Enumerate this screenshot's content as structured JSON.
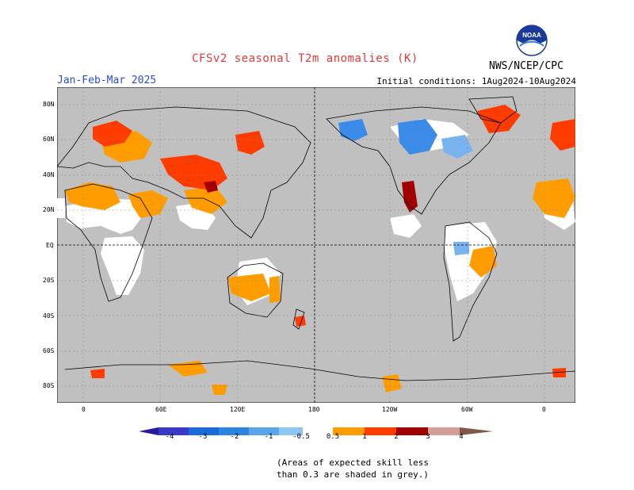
{
  "header": {
    "title": "CFSv2 seasonal T2m anomalies (K)",
    "season": "Jan-Feb-Mar 2025",
    "initial_conditions": "Initial conditions: 1Aug2024-10Aug2024",
    "agency": "NWS/NCEP/CPC",
    "logo_text": "NOAA"
  },
  "map": {
    "projection": "equirectangular",
    "background_color": "#c0c0c0",
    "no_signal_color": "#ffffff",
    "latitude_labels": [
      "80N",
      "60N",
      "40N",
      "20N",
      "EQ",
      "20S",
      "40S",
      "60S",
      "80S"
    ],
    "longitude_labels": [
      "0",
      "60E",
      "120E",
      "180",
      "120W",
      "60W",
      "0"
    ],
    "grid": true
  },
  "colorbar": {
    "labels": [
      "-4",
      "-3",
      "-2",
      "-1",
      "-0.5",
      "0.5",
      "1",
      "2",
      "3",
      "4"
    ],
    "colors": [
      "#2a1a9a",
      "#3a3ac8",
      "#1a6ad8",
      "#3a8ce8",
      "#7ab4f0",
      "#ffffff",
      "#ff9c00",
      "#ff3c00",
      "#d01010",
      "#a00000",
      "#d2a096",
      "#80584a"
    ]
  },
  "note": {
    "line1": "(Areas of expected skill less",
    "line2": "than 0.3 are shaded in grey.)"
  }
}
